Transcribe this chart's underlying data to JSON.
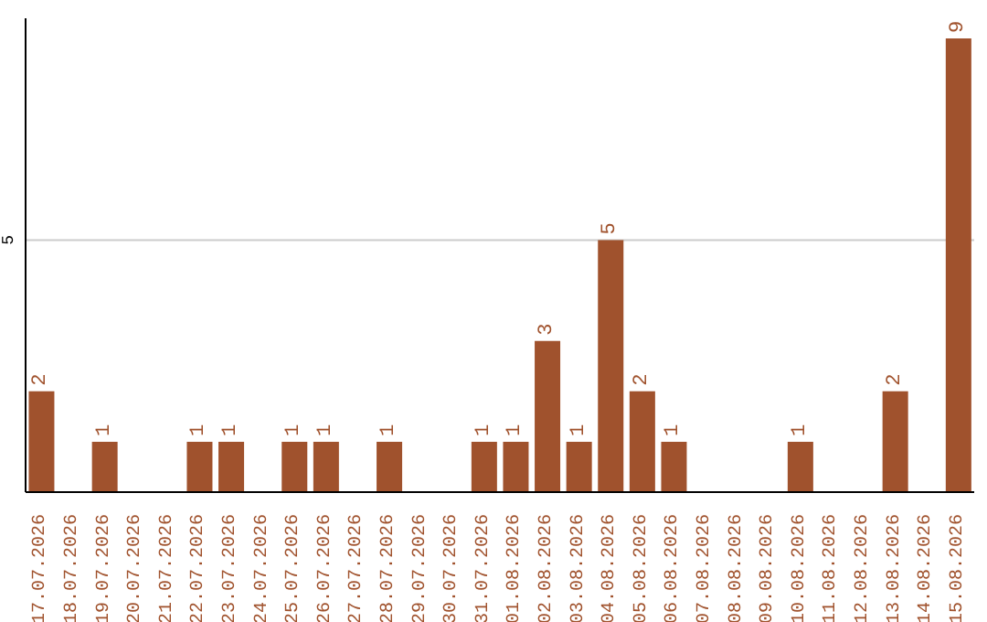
{
  "chart_data": {
    "type": "bar",
    "categories": [
      "17.07.2026",
      "18.07.2026",
      "19.07.2026",
      "20.07.2026",
      "21.07.2026",
      "22.07.2026",
      "23.07.2026",
      "24.07.2026",
      "25.07.2026",
      "26.07.2026",
      "27.07.2026",
      "28.07.2026",
      "29.07.2026",
      "30.07.2026",
      "31.07.2026",
      "01.08.2026",
      "02.08.2026",
      "03.08.2026",
      "04.08.2026",
      "05.08.2026",
      "06.08.2026",
      "07.08.2026",
      "08.08.2026",
      "09.08.2026",
      "10.08.2026",
      "11.08.2026",
      "12.08.2026",
      "13.08.2026",
      "14.08.2026",
      "15.08.2026"
    ],
    "values": [
      2,
      null,
      1,
      null,
      null,
      1,
      1,
      null,
      1,
      1,
      null,
      1,
      null,
      null,
      1,
      1,
      3,
      1,
      5,
      2,
      1,
      null,
      null,
      null,
      1,
      null,
      null,
      2,
      null,
      9
    ],
    "color": "#a0522d",
    "ylim": [
      0,
      9.4
    ],
    "yticks": [
      5
    ],
    "grid": "y",
    "data_labels": true
  }
}
